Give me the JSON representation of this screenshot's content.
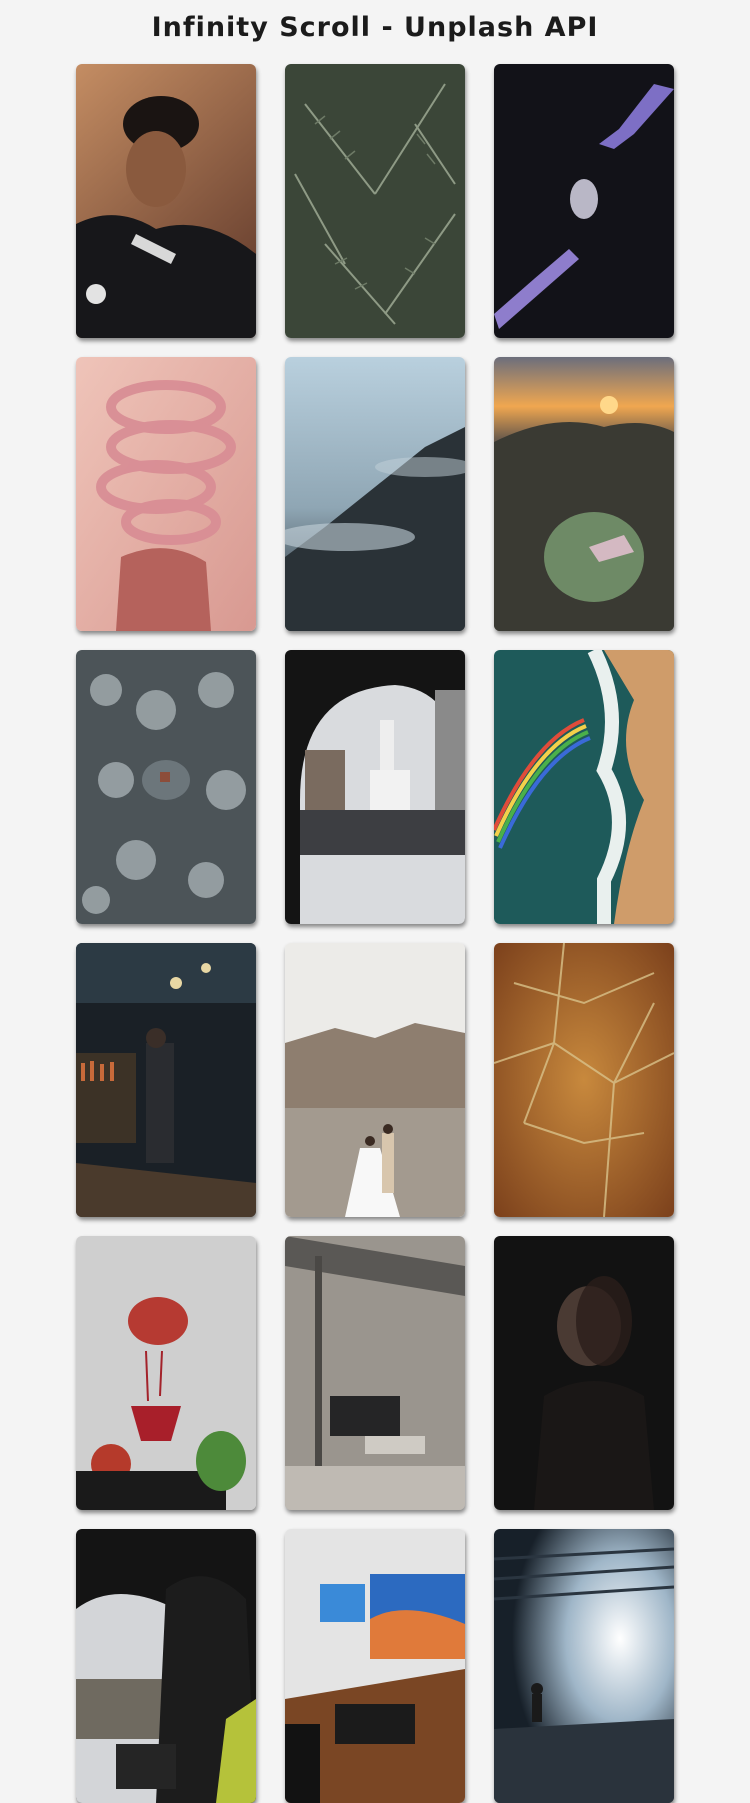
{
  "page": {
    "title": "Infinity Scroll - Unplash API"
  },
  "photos": [
    {
      "subject": "woman-portrait",
      "colors": [
        "#b78059",
        "#6e4431"
      ]
    },
    {
      "subject": "fir-branches",
      "colors": [
        "#6d7868",
        "#2f3a2c"
      ]
    },
    {
      "subject": "robot-hands",
      "colors": [
        "#1c1b26",
        "#0c0c12"
      ]
    },
    {
      "subject": "pink-hose-sculpture",
      "colors": [
        "#e7b3aa",
        "#c07c78"
      ]
    },
    {
      "subject": "misty-forest",
      "colors": [
        "#a9c3d2",
        "#1d2428"
      ]
    },
    {
      "subject": "mountain-sunset",
      "colors": [
        "#e6a35c",
        "#3c3f36"
      ]
    },
    {
      "subject": "snowy-forest-aerial",
      "colors": [
        "#8a9498",
        "#3f4649"
      ]
    },
    {
      "subject": "arch-church-square",
      "colors": [
        "#dadcdf",
        "#1a1a1a"
      ]
    },
    {
      "subject": "rainbow-beach-aerial",
      "colors": [
        "#2a6a6a",
        "#c79a6a"
      ]
    },
    {
      "subject": "bar-interior",
      "colors": [
        "#2e3a44",
        "#121418"
      ]
    },
    {
      "subject": "wedding-lake",
      "colors": [
        "#ebe9e5",
        "#8b7a6a"
      ]
    },
    {
      "subject": "leaf-macro",
      "colors": [
        "#c27a3b",
        "#8a4b21"
      ]
    },
    {
      "subject": "pomegranate",
      "colors": [
        "#d7d7d7",
        "#5e5e5e"
      ]
    },
    {
      "subject": "concrete-patio",
      "colors": [
        "#a7a29b",
        "#4a4845"
      ]
    },
    {
      "subject": "blurred-portrait",
      "colors": [
        "#1a1a1a",
        "#0a0a0a"
      ]
    },
    {
      "subject": "photographer-window",
      "colors": [
        "#d9dbde",
        "#121212"
      ]
    },
    {
      "subject": "desk-setup",
      "colors": [
        "#ececec",
        "#6c3a1d"
      ]
    },
    {
      "subject": "foggy-tunnel",
      "colors": [
        "#d9e6f2",
        "#1b2530"
      ]
    }
  ]
}
